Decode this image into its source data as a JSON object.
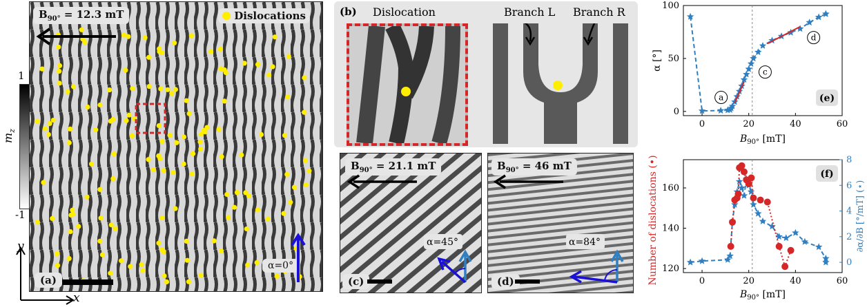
{
  "panel_a": {
    "label": "(a)",
    "field_label": "B",
    "field_sub": "90°",
    "field_value": " = 12.3 mT",
    "legend": "Dislocations",
    "angle": "α=0°",
    "axis_y": "y",
    "axis_x": "x",
    "colorbar_top": "1",
    "colorbar_bottom": "-1",
    "colorbar_label": "m",
    "colorbar_sub": "z"
  },
  "panel_b": {
    "label": "(b)",
    "title_left": "Dislocation",
    "branch_l": "Branch L",
    "branch_r": "Branch R"
  },
  "panel_c": {
    "label": "(c)",
    "field_label": "B",
    "field_sub": "90°",
    "field_value": " = 21.1 mT",
    "angle": "α=45°"
  },
  "panel_d": {
    "label": "(d)",
    "field_label": "B",
    "field_sub": "90°",
    "field_value": " = 46 mT",
    "angle": "α=84°"
  },
  "colors": {
    "blue": "#2f7fc1",
    "red": "#d62728",
    "yellow": "#ffee00",
    "dark_arrow": "#1a10d8"
  },
  "chart_data": [
    {
      "type": "line",
      "panel": "(e)",
      "xlabel": "B",
      "xlabel_sub": "90°",
      "xlabel_unit": " [mT]",
      "ylabel": "α [°]",
      "xlim": [
        -8,
        60
      ],
      "ylim": [
        -4,
        100
      ],
      "xticks": [
        0,
        20,
        40,
        60
      ],
      "yticks": [
        0,
        50,
        100
      ],
      "vline": 21.5,
      "series": [
        {
          "marker": "star",
          "color": "#2f7fc1",
          "x": [
            -5,
            0,
            8,
            11,
            12,
            12.5,
            13,
            14,
            15,
            16,
            17,
            18,
            19,
            20,
            21,
            22,
            24,
            26,
            30,
            34,
            38,
            42,
            46,
            50,
            53,
            53
          ],
          "y": [
            89.5,
            0.5,
            0.8,
            1.2,
            1.5,
            3,
            5,
            9,
            14,
            19,
            24,
            30,
            35,
            40,
            45,
            50,
            56,
            62,
            67,
            71,
            74.5,
            78,
            84,
            89,
            92,
            92
          ]
        }
      ],
      "callouts": [
        {
          "text": "a",
          "x": 12.3,
          "y": 1.5
        },
        {
          "text": "c",
          "x": 21.1,
          "y": 45
        },
        {
          "text": "d",
          "x": 46,
          "y": 84
        }
      ]
    },
    {
      "type": "line",
      "panel": "(f)",
      "xlabel": "B",
      "xlabel_sub": "90°",
      "xlabel_unit": " [mT]",
      "ylabel_left": "Number of dislocations (•)",
      "ylabel_right": "∂α/∂B [°/mT] (⋆)",
      "xlim": [
        -8,
        60
      ],
      "ylim_left": [
        118,
        174
      ],
      "ylim_right": [
        -0.8,
        8
      ],
      "xticks": [
        0,
        20,
        40,
        60
      ],
      "yticks_left": [
        120,
        140,
        160
      ],
      "yticks_right": [
        0,
        2,
        4,
        6,
        8
      ],
      "vline": 21.5,
      "series": [
        {
          "name": "Number of dislocations",
          "marker": "circle",
          "color": "#d62728",
          "axis": "left",
          "x": [
            12.3,
            13,
            14,
            15,
            15.5,
            16,
            17,
            18,
            19,
            20,
            21.1,
            22,
            25,
            28,
            33,
            35.5,
            38
          ],
          "y": [
            131,
            143,
            154,
            155,
            157,
            170,
            171,
            168,
            164,
            162,
            165,
            155,
            154,
            153,
            131,
            121,
            129
          ]
        },
        {
          "name": "∂α/∂B",
          "marker": "star",
          "color": "#2f7fc1",
          "axis": "right",
          "x": [
            -5,
            0,
            11,
            12,
            13,
            14,
            15,
            16,
            17,
            18,
            19,
            20,
            21,
            22,
            24,
            26,
            30,
            33,
            36,
            40,
            44,
            50,
            53,
            53
          ],
          "y": [
            0,
            0.1,
            0.2,
            0.5,
            3.2,
            4.5,
            5.5,
            6.3,
            5.8,
            5.2,
            6.5,
            6.0,
            5.5,
            4.5,
            3.8,
            3.2,
            2.8,
            2.0,
            1.9,
            2.3,
            1.6,
            1.2,
            0.3,
            0
          ]
        }
      ]
    }
  ]
}
